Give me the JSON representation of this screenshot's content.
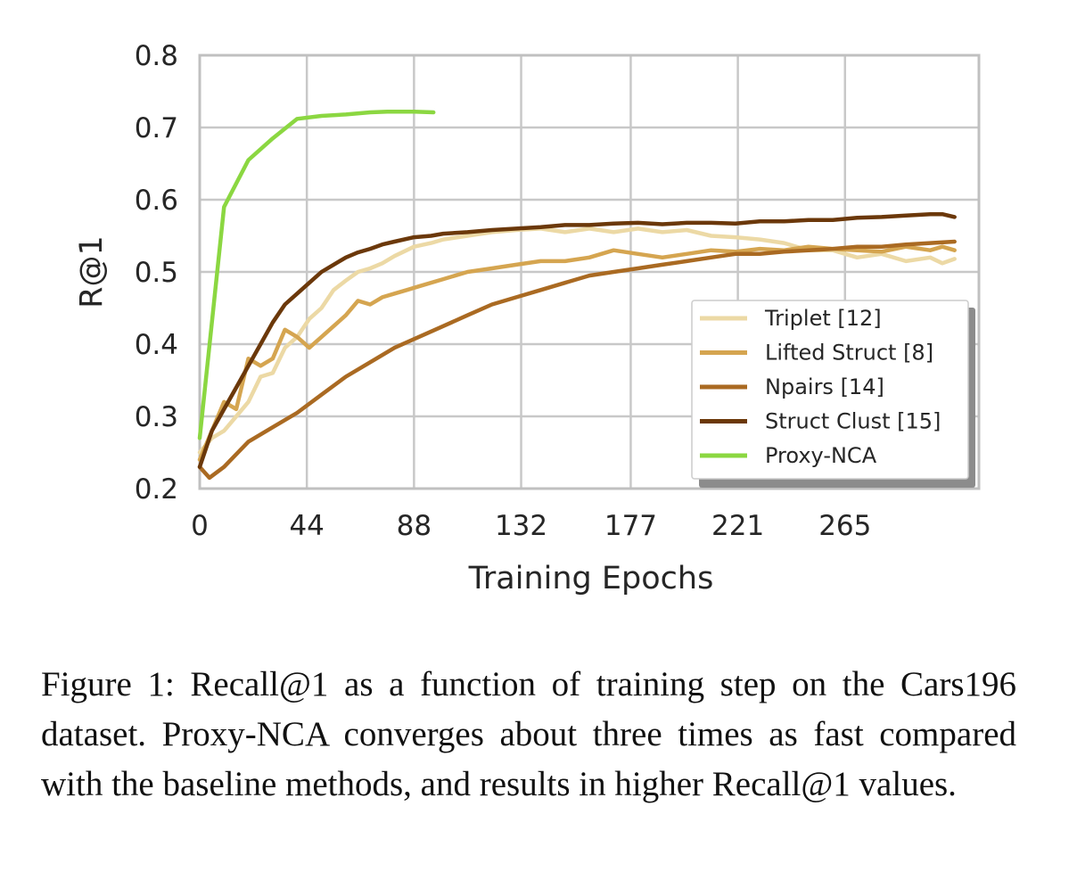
{
  "chart_data": {
    "type": "line",
    "xlabel": "Training Epochs",
    "ylabel": "R@1",
    "xlim": [
      0,
      320
    ],
    "ylim": [
      0.2,
      0.8
    ],
    "xticks": [
      0,
      44,
      88,
      132,
      177,
      221,
      265
    ],
    "xtick_labels": [
      "0",
      "44",
      "88",
      "132",
      "177",
      "221",
      "265"
    ],
    "yticks": [
      0.2,
      0.3,
      0.4,
      0.5,
      0.6,
      0.7,
      0.8
    ],
    "ytick_labels": [
      "0.2",
      "0.3",
      "0.4",
      "0.5",
      "0.6",
      "0.7",
      "0.8"
    ],
    "grid": true,
    "legend_position": "lower-right",
    "series": [
      {
        "name": "Triplet [12]",
        "color": "#ecd9a5",
        "x": [
          0,
          5,
          10,
          15,
          20,
          25,
          30,
          35,
          40,
          45,
          50,
          55,
          60,
          65,
          70,
          75,
          80,
          88,
          95,
          100,
          110,
          120,
          130,
          140,
          150,
          160,
          170,
          180,
          190,
          200,
          210,
          220,
          230,
          240,
          250,
          260,
          270,
          280,
          290,
          300,
          305,
          310
        ],
        "y": [
          0.25,
          0.27,
          0.28,
          0.3,
          0.32,
          0.355,
          0.36,
          0.395,
          0.41,
          0.435,
          0.45,
          0.475,
          0.488,
          0.5,
          0.505,
          0.512,
          0.522,
          0.535,
          0.54,
          0.545,
          0.55,
          0.555,
          0.558,
          0.56,
          0.555,
          0.56,
          0.555,
          0.56,
          0.555,
          0.558,
          0.55,
          0.548,
          0.545,
          0.54,
          0.53,
          0.53,
          0.52,
          0.525,
          0.515,
          0.52,
          0.512,
          0.518
        ]
      },
      {
        "name": "Lifted Struct [8]",
        "color": "#d5a550",
        "x": [
          0,
          5,
          10,
          15,
          20,
          25,
          30,
          35,
          40,
          45,
          50,
          55,
          60,
          65,
          70,
          75,
          80,
          85,
          90,
          100,
          110,
          120,
          130,
          140,
          150,
          160,
          170,
          180,
          190,
          200,
          210,
          220,
          230,
          240,
          250,
          260,
          270,
          280,
          290,
          300,
          305,
          310
        ],
        "y": [
          0.24,
          0.28,
          0.32,
          0.31,
          0.38,
          0.37,
          0.38,
          0.42,
          0.41,
          0.395,
          0.41,
          0.425,
          0.44,
          0.46,
          0.455,
          0.465,
          0.47,
          0.475,
          0.48,
          0.49,
          0.5,
          0.505,
          0.51,
          0.515,
          0.515,
          0.52,
          0.53,
          0.525,
          0.52,
          0.525,
          0.53,
          0.528,
          0.532,
          0.53,
          0.535,
          0.532,
          0.53,
          0.528,
          0.535,
          0.53,
          0.535,
          0.53
        ]
      },
      {
        "name": "Npairs [14]",
        "color": "#aa6a22",
        "x": [
          0,
          4,
          10,
          20,
          30,
          40,
          50,
          60,
          70,
          80,
          90,
          100,
          110,
          120,
          130,
          140,
          150,
          160,
          170,
          180,
          190,
          200,
          210,
          220,
          230,
          240,
          250,
          260,
          270,
          280,
          290,
          300,
          310
        ],
        "y": [
          0.23,
          0.215,
          0.23,
          0.265,
          0.285,
          0.305,
          0.33,
          0.355,
          0.375,
          0.395,
          0.41,
          0.425,
          0.44,
          0.455,
          0.465,
          0.475,
          0.485,
          0.495,
          0.5,
          0.505,
          0.51,
          0.515,
          0.52,
          0.525,
          0.525,
          0.528,
          0.53,
          0.532,
          0.535,
          0.535,
          0.538,
          0.54,
          0.542
        ]
      },
      {
        "name": "Struct Clust [15]",
        "color": "#6b380a",
        "x": [
          0,
          5,
          10,
          15,
          20,
          25,
          30,
          35,
          40,
          45,
          50,
          55,
          60,
          65,
          70,
          75,
          80,
          88,
          95,
          100,
          110,
          120,
          130,
          140,
          150,
          160,
          170,
          180,
          190,
          200,
          210,
          220,
          230,
          240,
          250,
          260,
          270,
          280,
          290,
          300,
          305,
          310
        ],
        "y": [
          0.23,
          0.28,
          0.31,
          0.34,
          0.37,
          0.4,
          0.43,
          0.455,
          0.47,
          0.485,
          0.5,
          0.51,
          0.52,
          0.527,
          0.532,
          0.538,
          0.542,
          0.548,
          0.55,
          0.553,
          0.555,
          0.558,
          0.56,
          0.562,
          0.565,
          0.565,
          0.567,
          0.568,
          0.566,
          0.568,
          0.568,
          0.567,
          0.57,
          0.57,
          0.572,
          0.572,
          0.575,
          0.576,
          0.578,
          0.58,
          0.58,
          0.576
        ]
      },
      {
        "name": "Proxy-NCA",
        "color": "#8bd741",
        "x": [
          0,
          10,
          20,
          30,
          40,
          50,
          60,
          70,
          77,
          88,
          96
        ],
        "y": [
          0.27,
          0.59,
          0.655,
          0.685,
          0.712,
          0.716,
          0.718,
          0.721,
          0.722,
          0.722,
          0.721
        ]
      }
    ]
  },
  "caption": {
    "text": "Figure 1:  Recall@1 as a function of training step on the Cars196 dataset.  Proxy-NCA converges about three times as fast compared with the baseline methods, and results in higher Recall@1 values."
  }
}
